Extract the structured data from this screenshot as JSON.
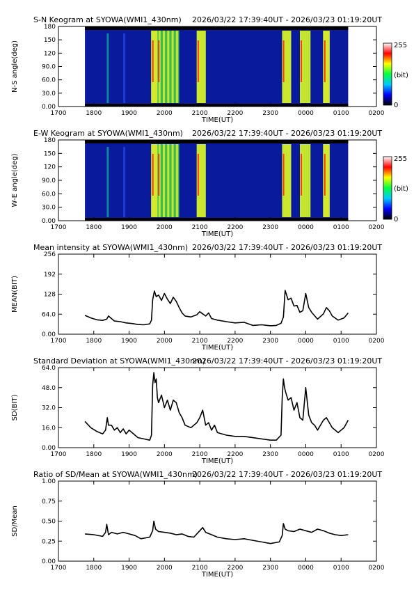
{
  "time_range": "2026/03/22 17:39:40UT - 2026/03/23 01:19:20UT",
  "colors": {
    "line": "#000000",
    "keogram_background": "#0a1a9c",
    "keogram_bands": [
      "#1e3fd8",
      "#11b3a0",
      "#42d94a",
      "#d8ea2c",
      "#ff2a10"
    ],
    "colorbar": [
      "#000000",
      "#0000ff",
      "#00c8ff",
      "#00ff40",
      "#ffff00",
      "#ff0000",
      "#ffffff"
    ]
  },
  "chart_data": [
    {
      "type": "heatmap",
      "title": "S-N Keogram at SYOWA(WMI1_430nm)",
      "xlabel": "TIME(UT)",
      "ylabel": "N-S angle(deg)",
      "x_ticks": [
        "1700",
        "1800",
        "1900",
        "2000",
        "2100",
        "2200",
        "2300",
        "0000",
        "0100",
        "0200"
      ],
      "y_ticks": [
        "0.00",
        "30.0",
        "60.0",
        "90.0",
        "120",
        "150",
        "180"
      ],
      "ylim": [
        0,
        180
      ],
      "colorbar": {
        "min_label": "0",
        "max_label": "255",
        "unit_label": "(bit)"
      },
      "bright_intervals_hhmm": [
        [
          "19:38",
          "19:48"
        ],
        [
          "19:48",
          "20:25"
        ],
        [
          "20:55",
          "21:10"
        ],
        [
          "23:20",
          "23:35"
        ],
        [
          "23:50",
          "00:08"
        ],
        [
          "00:30",
          "00:40"
        ]
      ]
    },
    {
      "type": "heatmap",
      "title": "E-W Keogram at SYOWA(WMI1_430nm)",
      "xlabel": "TIME(UT)",
      "ylabel": "W-E angle(deg)",
      "x_ticks": [
        "1700",
        "1800",
        "1900",
        "2000",
        "2100",
        "2200",
        "2300",
        "0000",
        "0100",
        "0200"
      ],
      "y_ticks": [
        "0.00",
        "30.0",
        "60.0",
        "90.0",
        "120",
        "150",
        "180"
      ],
      "ylim": [
        0,
        180
      ],
      "colorbar": {
        "min_label": "0",
        "max_label": "255",
        "unit_label": "(bit)"
      },
      "bright_intervals_hhmm": [
        [
          "19:38",
          "19:48"
        ],
        [
          "19:48",
          "20:25"
        ],
        [
          "20:55",
          "21:10"
        ],
        [
          "23:20",
          "23:35"
        ],
        [
          "23:50",
          "00:08"
        ],
        [
          "00:30",
          "00:40"
        ]
      ]
    },
    {
      "type": "line",
      "title": "Mean intensity at SYOWA(WMI1_430nm)",
      "xlabel": "TIME(UT)",
      "ylabel": "MEAN(BIT)",
      "x_ticks": [
        "1700",
        "1800",
        "1900",
        "2000",
        "2100",
        "2200",
        "2300",
        "0000",
        "0100",
        "0200"
      ],
      "y_ticks": [
        "0.00",
        "64.0",
        "128",
        "192",
        "256"
      ],
      "ylim": [
        0,
        256
      ],
      "series": [
        {
          "x_hhmm": [
            "17:45",
            "17:55",
            "18:05",
            "18:15",
            "18:22",
            "18:25",
            "18:35",
            "18:45",
            "18:55",
            "19:05",
            "19:15",
            "19:25",
            "19:35",
            "19:38",
            "19:40",
            "19:43",
            "19:46",
            "19:50",
            "19:55",
            "20:00",
            "20:05",
            "20:10",
            "20:15",
            "20:20",
            "20:25",
            "20:30",
            "20:35",
            "20:45",
            "20:55",
            "21:00",
            "21:05",
            "21:10",
            "21:15",
            "21:20",
            "21:30",
            "21:45",
            "22:00",
            "22:15",
            "22:30",
            "22:45",
            "23:00",
            "23:10",
            "23:18",
            "23:22",
            "23:25",
            "23:30",
            "23:35",
            "23:40",
            "23:45",
            "23:50",
            "23:55",
            "00:00",
            "00:05",
            "00:10",
            "00:20",
            "00:30",
            "00:35",
            "00:40",
            "00:45",
            "00:55",
            "01:05",
            "01:12"
          ],
          "y": [
            60,
            52,
            46,
            44,
            48,
            58,
            42,
            40,
            36,
            34,
            31,
            30,
            33,
            45,
            110,
            138,
            120,
            125,
            108,
            130,
            112,
            98,
            118,
            105,
            85,
            68,
            58,
            55,
            62,
            72,
            65,
            58,
            68,
            50,
            45,
            40,
            36,
            38,
            28,
            30,
            27,
            28,
            35,
            55,
            140,
            110,
            115,
            90,
            92,
            70,
            75,
            130,
            85,
            70,
            48,
            65,
            85,
            75,
            58,
            45,
            52,
            68
          ]
        }
      ]
    },
    {
      "type": "line",
      "title": "Standard Deviation at SYOWA(WMI1_430nm)",
      "xlabel": "TIME(UT)",
      "ylabel": "SD(BIT)",
      "x_ticks": [
        "1700",
        "1800",
        "1900",
        "2000",
        "2100",
        "2200",
        "2300",
        "0000",
        "0100",
        "0200"
      ],
      "y_ticks": [
        "0.00",
        "16.0",
        "32.0",
        "48.0",
        "64.0"
      ],
      "ylim": [
        0,
        64
      ],
      "series": [
        {
          "x_hhmm": [
            "17:45",
            "17:55",
            "18:05",
            "18:15",
            "18:20",
            "18:23",
            "18:25",
            "18:30",
            "18:35",
            "18:40",
            "18:45",
            "18:50",
            "18:55",
            "19:00",
            "19:05",
            "19:10",
            "19:15",
            "19:25",
            "19:35",
            "19:38",
            "19:40",
            "19:42",
            "19:44",
            "19:46",
            "19:48",
            "19:50",
            "19:55",
            "20:00",
            "20:05",
            "20:10",
            "20:15",
            "20:20",
            "20:25",
            "20:30",
            "20:35",
            "20:45",
            "20:55",
            "21:00",
            "21:05",
            "21:10",
            "21:15",
            "21:20",
            "21:25",
            "21:30",
            "21:45",
            "22:00",
            "22:15",
            "22:30",
            "22:45",
            "23:00",
            "23:10",
            "23:18",
            "23:20",
            "23:22",
            "23:24",
            "23:26",
            "23:30",
            "23:35",
            "23:40",
            "23:45",
            "23:50",
            "23:55",
            "00:00",
            "00:05",
            "00:10",
            "00:15",
            "00:20",
            "00:30",
            "00:35",
            "00:40",
            "00:45",
            "00:55",
            "01:05",
            "01:12"
          ],
          "y": [
            21,
            16,
            13,
            11,
            14,
            24,
            18,
            18,
            14,
            16,
            12,
            15,
            11,
            14,
            12,
            10,
            8,
            7,
            6,
            10,
            50,
            60,
            52,
            55,
            40,
            36,
            42,
            32,
            38,
            30,
            38,
            36,
            28,
            24,
            18,
            16,
            20,
            24,
            30,
            18,
            20,
            14,
            18,
            12,
            10,
            9,
            9,
            8,
            7,
            6,
            6,
            10,
            40,
            55,
            48,
            44,
            38,
            40,
            30,
            36,
            24,
            22,
            48,
            26,
            20,
            18,
            14,
            22,
            24,
            20,
            16,
            12,
            16,
            22
          ]
        }
      ]
    },
    {
      "type": "line",
      "title": "Ratio of SD/Mean at SYOWA(WMI1_430nm)",
      "xlabel": "TIME(UT)",
      "ylabel": "SD/Mean",
      "x_ticks": [
        "1700",
        "1800",
        "1900",
        "2000",
        "2100",
        "2200",
        "2300",
        "0000",
        "0100",
        "0200"
      ],
      "y_ticks": [
        "0.00",
        "0.25",
        "0.50",
        "0.75",
        "1.00"
      ],
      "ylim": [
        0,
        1
      ],
      "series": [
        {
          "x_hhmm": [
            "17:45",
            "18:00",
            "18:15",
            "18:20",
            "18:22",
            "18:25",
            "18:30",
            "18:40",
            "18:50",
            "19:00",
            "19:10",
            "19:20",
            "19:35",
            "19:40",
            "19:42",
            "19:45",
            "19:50",
            "20:00",
            "20:10",
            "20:20",
            "20:30",
            "20:40",
            "20:50",
            "21:00",
            "21:05",
            "21:10",
            "21:20",
            "21:30",
            "21:45",
            "22:00",
            "22:15",
            "22:30",
            "22:45",
            "23:00",
            "23:15",
            "23:20",
            "23:22",
            "23:25",
            "23:30",
            "23:40",
            "23:50",
            "00:00",
            "00:10",
            "00:20",
            "00:30",
            "00:40",
            "00:50",
            "01:00",
            "01:12"
          ],
          "y": [
            0.34,
            0.33,
            0.31,
            0.36,
            0.46,
            0.33,
            0.36,
            0.34,
            0.36,
            0.34,
            0.32,
            0.28,
            0.3,
            0.38,
            0.5,
            0.4,
            0.37,
            0.36,
            0.35,
            0.33,
            0.34,
            0.31,
            0.3,
            0.38,
            0.42,
            0.36,
            0.33,
            0.3,
            0.28,
            0.27,
            0.28,
            0.26,
            0.24,
            0.22,
            0.24,
            0.32,
            0.47,
            0.4,
            0.38,
            0.37,
            0.4,
            0.38,
            0.36,
            0.4,
            0.38,
            0.35,
            0.33,
            0.32,
            0.33
          ]
        }
      ]
    }
  ]
}
